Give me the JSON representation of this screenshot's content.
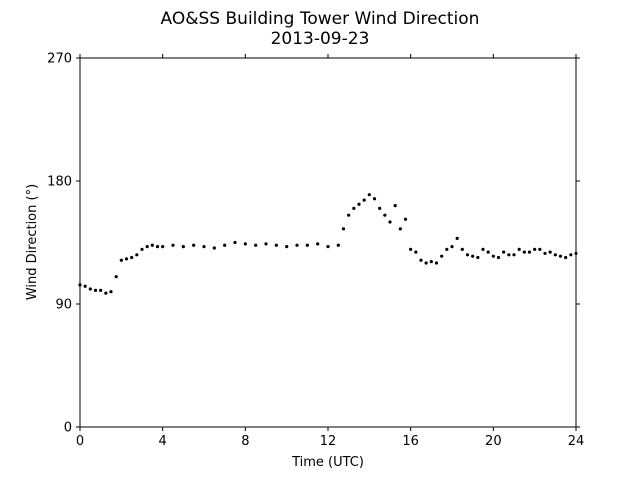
{
  "chart_data": {
    "type": "scatter",
    "title": "AO&SS Building Tower Wind Direction",
    "subtitle": "2013-09-23",
    "xlabel": "Time (UTC)",
    "ylabel": "Wind Direction (°)",
    "xlim": [
      0,
      24
    ],
    "ylim": [
      0,
      270
    ],
    "xticks": [
      0,
      4,
      8,
      12,
      16,
      20,
      24
    ],
    "yticks": [
      0,
      90,
      180,
      270
    ],
    "grid": false,
    "marker_color": "#000000",
    "points_description_note": "",
    "x": [
      0.0,
      0.25,
      0.5,
      0.75,
      1.0,
      1.25,
      1.5,
      1.75,
      2.0,
      2.25,
      2.5,
      2.75,
      3.0,
      3.25,
      3.5,
      3.75,
      4.0,
      4.5,
      5.0,
      5.5,
      6.0,
      6.5,
      7.0,
      7.5,
      8.0,
      8.5,
      9.0,
      9.5,
      10.0,
      10.5,
      11.0,
      11.5,
      12.0,
      12.5,
      12.75,
      13.0,
      13.25,
      13.5,
      13.75,
      14.0,
      14.25,
      14.5,
      14.75,
      15.0,
      15.25,
      15.5,
      15.75,
      16.0,
      16.25,
      16.5,
      16.75,
      17.0,
      17.25,
      17.5,
      17.75,
      18.0,
      18.25,
      18.5,
      18.75,
      19.0,
      19.25,
      19.5,
      19.75,
      20.0,
      20.25,
      20.5,
      20.75,
      21.0,
      21.25,
      21.5,
      21.75,
      22.0,
      22.25,
      22.5,
      22.75,
      23.0,
      23.25,
      23.5,
      23.75,
      24.0
    ],
    "y": [
      104,
      103,
      101,
      100,
      100,
      98,
      99,
      110,
      122,
      123,
      124,
      126,
      130,
      132,
      133,
      132,
      132,
      133,
      132,
      133,
      132,
      131,
      133,
      135,
      134,
      133,
      134,
      133,
      132,
      133,
      133,
      134,
      132,
      133,
      145,
      155,
      160,
      163,
      166,
      170,
      167,
      160,
      155,
      150,
      162,
      145,
      152,
      130,
      128,
      122,
      120,
      121,
      120,
      125,
      130,
      132,
      138,
      130,
      126,
      125,
      124,
      130,
      128,
      125,
      124,
      128,
      126,
      126,
      130,
      128,
      128,
      130,
      130,
      127,
      128,
      126,
      125,
      124,
      126,
      127
    ]
  }
}
